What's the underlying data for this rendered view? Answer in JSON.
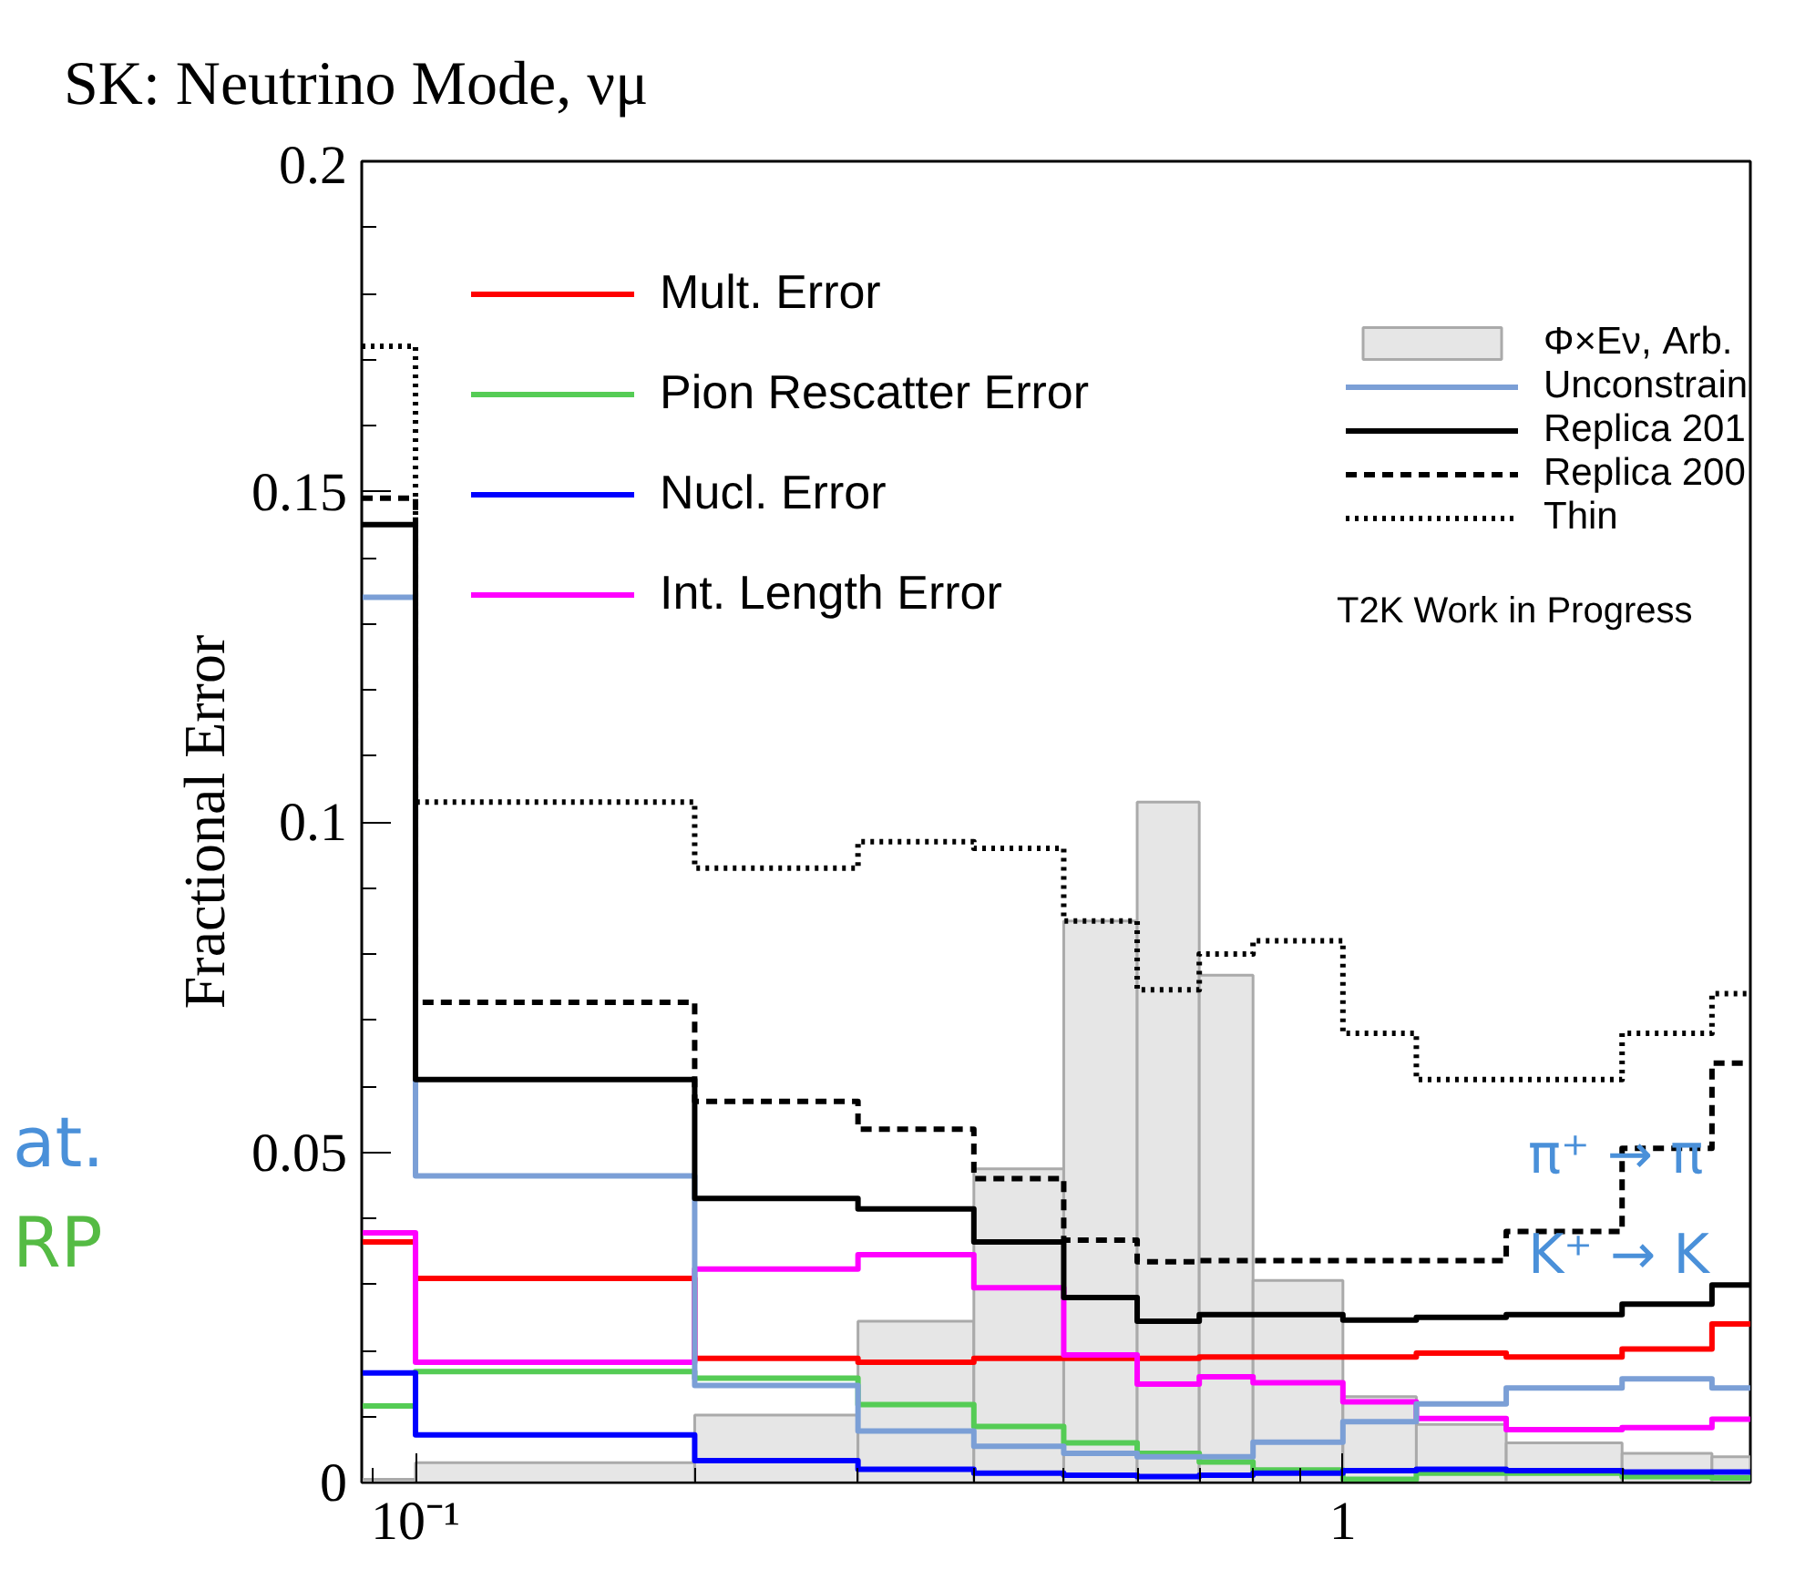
{
  "chart_data": {
    "type": "step",
    "title": "SK: Neutrino Mode, νμ",
    "ylabel": "Fractional Error",
    "bins": [
      0.0875,
      0.1,
      0.2,
      0.3,
      0.4,
      0.5,
      0.6,
      0.7,
      0.8,
      1.0,
      1.2,
      1.5,
      2.0,
      2.5,
      2.75
    ],
    "x": [
      0.0875,
      0.1,
      0.2,
      0.3,
      0.4,
      0.5,
      0.6,
      0.7,
      0.8,
      1.0,
      1.2,
      1.5,
      2.0,
      2.5
    ],
    "series": [
      {
        "name": "Mult. Error",
        "color": "#ff0000",
        "values": [
          0.0364,
          0.0309,
          0.0188,
          0.0182,
          0.0188,
          0.0188,
          0.0188,
          0.019,
          0.019,
          0.019,
          0.0196,
          0.019,
          0.0202,
          0.024
        ]
      },
      {
        "name": "Pion Rescatter Error",
        "color": "#55cc55",
        "values": [
          0.0116,
          0.0168,
          0.0158,
          0.0118,
          0.0085,
          0.006,
          0.0044,
          0.0031,
          0.0019,
          0.0005,
          0.0014,
          0.0014,
          0.0009,
          0.0007
        ]
      },
      {
        "name": "Nucl. Error",
        "color": "#0000ff",
        "values": [
          0.0166,
          0.0072,
          0.0033,
          0.002,
          0.0014,
          0.0011,
          0.0009,
          0.0011,
          0.0014,
          0.0018,
          0.002,
          0.0018,
          0.0016,
          0.0016
        ]
      },
      {
        "name": "Int. Length Error",
        "color": "#ff00ff",
        "values": [
          0.0378,
          0.0182,
          0.0323,
          0.0345,
          0.0295,
          0.0193,
          0.0149,
          0.016,
          0.0151,
          0.0122,
          0.0097,
          0.008,
          0.0083,
          0.0096
        ]
      },
      {
        "name": "Φ×Eν, Arb.",
        "type": "histogram",
        "color": "#e6e6e6",
        "values": [
          0.0005,
          0.003,
          0.0102,
          0.0244,
          0.0475,
          0.085,
          0.103,
          0.0768,
          0.0306,
          0.013,
          0.0088,
          0.006,
          0.0044,
          0.0039
        ]
      },
      {
        "name": "Unconstrain",
        "color": "#7b9fd6",
        "values": [
          0.134,
          0.0464,
          0.0147,
          0.0078,
          0.0055,
          0.0044,
          0.0039,
          0.0039,
          0.0061,
          0.0092,
          0.0119,
          0.0143,
          0.0157,
          0.0143
        ]
      },
      {
        "name": "Replica 201",
        "color": "#000000",
        "values": [
          0.145,
          0.061,
          0.043,
          0.0414,
          0.0364,
          0.028,
          0.0244,
          0.0254,
          0.0254,
          0.0246,
          0.025,
          0.0254,
          0.027,
          0.0299
        ]
      },
      {
        "name": "Replica 200",
        "color": "#000000",
        "line_style": "dashed",
        "values": [
          0.149,
          0.0727,
          0.0577,
          0.0535,
          0.046,
          0.0367,
          0.0334,
          0.0336,
          0.0336,
          0.0336,
          0.0336,
          0.038,
          0.0506,
          0.0635
        ]
      },
      {
        "name": "Thin",
        "color": "#000000",
        "line_style": "dotted",
        "values": [
          0.172,
          0.103,
          0.093,
          0.097,
          0.096,
          0.085,
          0.0746,
          0.08,
          0.082,
          0.068,
          0.061,
          0.061,
          0.068,
          0.074
        ]
      }
    ],
    "xlim": [
      0.0875,
      2.75
    ],
    "ylim": [
      0,
      0.2
    ],
    "log": "x",
    "xticks": [
      {
        "value": 0.09,
        "label": null
      },
      {
        "value": 0.1,
        "label": "10⁻¹"
      },
      {
        "value": 0.2,
        "label": null
      },
      {
        "value": 0.3,
        "label": null
      },
      {
        "value": 0.4,
        "label": null
      },
      {
        "value": 0.5,
        "label": null
      },
      {
        "value": 0.6,
        "label": null
      },
      {
        "value": 0.7,
        "label": null
      },
      {
        "value": 0.8,
        "label": null
      },
      {
        "value": 0.9,
        "label": null
      },
      {
        "value": 1,
        "label": "1"
      },
      {
        "value": 2,
        "label": null
      }
    ],
    "yticks": [
      0,
      {
        "value": 0.01,
        "label": null
      },
      {
        "value": 0.02,
        "label": null
      },
      {
        "value": 0.03,
        "label": null
      },
      {
        "value": 0.04,
        "label": null
      },
      {
        "value": 0.05,
        "label": "0.05"
      },
      {
        "value": 0.06,
        "label": null
      },
      {
        "value": 0.07,
        "label": null
      },
      {
        "value": 0.08,
        "label": null
      },
      {
        "value": 0.09,
        "label": null
      },
      {
        "value": 0.1,
        "label": "0.1"
      },
      {
        "value": 0.11,
        "label": null
      },
      {
        "value": 0.12,
        "label": null
      },
      {
        "value": 0.13,
        "label": null
      },
      {
        "value": 0.14,
        "label": null
      },
      {
        "value": 0.15,
        "label": "0.15"
      },
      {
        "value": 0.16,
        "label": null
      },
      {
        "value": 0.17,
        "label": null
      },
      {
        "value": 0.18,
        "label": null
      },
      {
        "value": 0.19,
        "label": null
      },
      {
        "value": 0.2,
        "label": "0.2"
      }
    ],
    "legend": "top",
    "grid": false,
    "annotations": [
      "T2K Work in Progress",
      "at.",
      "RP",
      "π⁺ → π",
      "K⁺ → K"
    ]
  }
}
